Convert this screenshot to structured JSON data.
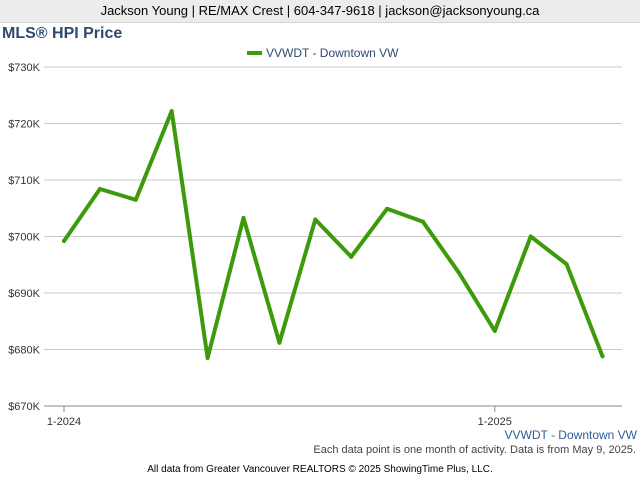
{
  "header": {
    "contact": "Jackson Young | RE/MAX Crest | 604-347-9618 | jackson@jacksonyoung.ca"
  },
  "title": "MLS® HPI Price",
  "footer_note": "Each data point is one month of activity. Data is from May 9, 2025.",
  "copyright": "All data from Greater Vancouver REALTORS © 2025 ShowingTime Plus, LLC.",
  "colors": {
    "series": "#3d9a0a",
    "title": "#2e4a6e",
    "axis_label": "#2e5d9a",
    "grid": "#c8c8c8"
  },
  "chart_data": {
    "type": "line",
    "title": "MLS® HPI Price",
    "legend_position": "top-center",
    "axis_series_label": "VVWDT - Downtown VW",
    "x_tick_labels": [
      "1-2024",
      "1-2025"
    ],
    "x_tick_indices": [
      0,
      12
    ],
    "y_tick_labels": [
      "$730K",
      "$720K",
      "$710K",
      "$700K",
      "$690K",
      "$680K",
      "$670K"
    ],
    "ylim": [
      670000,
      730000
    ],
    "grid": true,
    "series": [
      {
        "name": "VVWDT - Downtown VW",
        "x": [
          "2024-01",
          "2024-02",
          "2024-03",
          "2024-04",
          "2024-05",
          "2024-06",
          "2024-07",
          "2024-08",
          "2024-09",
          "2024-10",
          "2024-11",
          "2024-12",
          "2025-01",
          "2025-02",
          "2025-03",
          "2025-04"
        ],
        "values": [
          699200,
          708400,
          706500,
          722200,
          678500,
          703300,
          681200,
          703000,
          696400,
          704900,
          702600,
          693600,
          683300,
          700000,
          695100,
          678800
        ]
      }
    ]
  }
}
